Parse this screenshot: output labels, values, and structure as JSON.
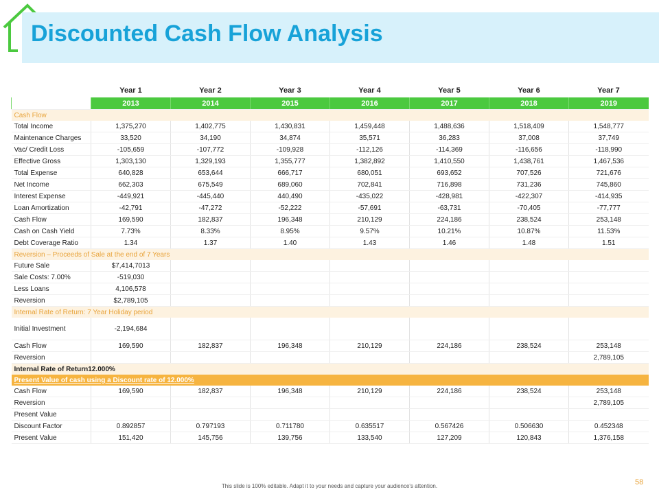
{
  "header": {
    "title": "Discounted Cash Flow Analysis"
  },
  "table": {
    "years": [
      "Year 1",
      "Year 2",
      "Year 3",
      "Year 4",
      "Year 5",
      "Year 6",
      "Year 7"
    ],
    "dates": [
      "2013",
      "2014",
      "2015",
      "2016",
      "2017",
      "2018",
      "2019"
    ],
    "rows": [
      {
        "section": "Cash Flow"
      },
      {
        "label": "Total Income",
        "values": [
          "1,375,270",
          "1,402,775",
          "1,430,831",
          "1,459,448",
          "1,488,636",
          "1,518,409",
          "1,548,777"
        ]
      },
      {
        "label": "Maintenance Charges",
        "values": [
          "33,520",
          "34,190",
          "34,874",
          "35,571",
          "36,283",
          "37,008",
          "37,749"
        ]
      },
      {
        "label": "Vac/ Credit Loss",
        "values": [
          "-105,659",
          "-107,772",
          "-109,928",
          "-112,126",
          "-114,369",
          "-116,656",
          "-118,990"
        ]
      },
      {
        "label": "Effective Gross",
        "values": [
          "1,303,130",
          "1,329,193",
          "1,355,777",
          "1,382,892",
          "1,410,550",
          "1,438,761",
          "1,467,536"
        ]
      },
      {
        "label": "Total Expense",
        "values": [
          "640,828",
          "653,644",
          "666,717",
          "680,051",
          "693,652",
          "707,526",
          "721,676"
        ]
      },
      {
        "label": "Net Income",
        "values": [
          "662,303",
          "675,549",
          "689,060",
          "702,841",
          "716,898",
          "731,236",
          "745,860"
        ]
      },
      {
        "label": "Interest Expense",
        "values": [
          "-449,921",
          "-445,440",
          "440,490",
          "-435,022",
          "-428,981",
          "-422,307",
          "-414,935"
        ]
      },
      {
        "label": "Loan Amortization",
        "values": [
          "-42,791",
          "-47,272",
          "-52,222",
          "-57,691",
          "-63,731",
          "-70,405",
          "-77,777"
        ]
      },
      {
        "label": "Cash Flow",
        "values": [
          "169,590",
          "182,837",
          "196,348",
          "210,129",
          "224,186",
          "238,524",
          "253,148"
        ]
      },
      {
        "label": "Cash on Cash Yield",
        "values": [
          "7.73%",
          "8.33%",
          "8.95%",
          "9.57%",
          "10.21%",
          "10.87%",
          "11.53%"
        ]
      },
      {
        "label": "Debt Coverage Ratio",
        "values": [
          "1.34",
          "1.37",
          "1.40",
          "1.43",
          "1.46",
          "1.48",
          "1.51"
        ]
      },
      {
        "section": "Reversion – Proceeds of Sale at the end of 7 Years"
      },
      {
        "label": "Future Sale",
        "values": [
          "$7,414,7013"
        ]
      },
      {
        "label": "Sale Costs: 7.00%",
        "values": [
          "-519,030"
        ]
      },
      {
        "label": "Less Loans",
        "values": [
          "4,106,578"
        ]
      },
      {
        "label": "Reversion",
        "values": [
          "$2,789,105"
        ]
      },
      {
        "section": "Internal Rate of Return: 7 Year Holiday period"
      },
      {
        "label": "Initial Investment",
        "values": [
          "-2,194,684"
        ],
        "tall": true
      },
      {
        "label": "Cash Flow",
        "values": [
          "169,590",
          "182,837",
          "196,348",
          "210,129",
          "224,186",
          "238,524",
          "253,148"
        ]
      },
      {
        "label": "Reversion",
        "values": [
          null,
          null,
          null,
          null,
          null,
          null,
          "2,789,105"
        ]
      },
      {
        "summary": "Internal Rate of Return12.000%"
      },
      {
        "highlight": "Present Value of cash using a Discount rate of 12.000%"
      },
      {
        "label": "Cash Flow",
        "values": [
          "169,590",
          "182,837",
          "196,348",
          "210,129",
          "224,186",
          "238,524",
          "253,148"
        ]
      },
      {
        "label": "Reversion",
        "values": [
          null,
          null,
          null,
          null,
          null,
          null,
          "2,789,105"
        ]
      },
      {
        "label": "Present Value",
        "values": []
      },
      {
        "label": "Discount Factor",
        "values": [
          "0.892857",
          "0.797193",
          "0.711780",
          "0.635517",
          "0.567426",
          "0.506630",
          "0.452348"
        ]
      },
      {
        "label": "Present Value",
        "values": [
          "151,420",
          "145,756",
          "139,756",
          "133,540",
          "127,209",
          "120,843",
          "1,376,158"
        ]
      }
    ]
  },
  "footer": {
    "note": "This slide is 100% editable. Adapt it to your needs and capture your audience's attention.",
    "page": "58"
  }
}
